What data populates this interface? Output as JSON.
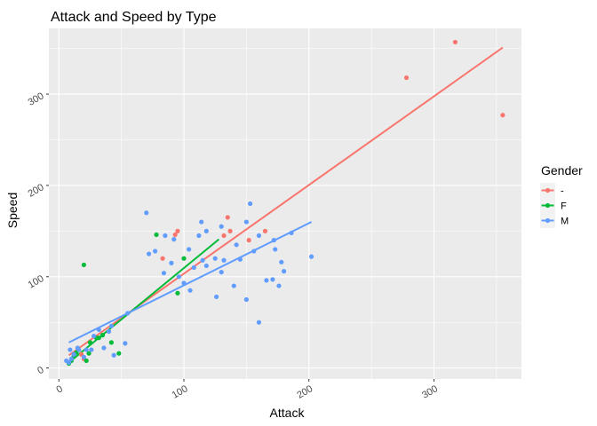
{
  "chart_data": {
    "type": "scatter",
    "title": "Attack and Speed by Type",
    "xlabel": "Attack",
    "ylabel": "Speed",
    "xlim": [
      -8,
      370
    ],
    "ylim": [
      -12,
      372
    ],
    "x_ticks": [
      0,
      100,
      200,
      300
    ],
    "x_tick_labels": [
      "0",
      "100",
      "200",
      "300"
    ],
    "y_ticks": [
      0,
      100,
      200,
      300
    ],
    "y_tick_labels": [
      "0",
      "100",
      "200",
      "300"
    ],
    "grid": true,
    "legend": {
      "title": "Gender",
      "placement": "right"
    },
    "series": [
      {
        "name": "-",
        "color": "#F8766D",
        "points": [
          [
            317,
            357
          ],
          [
            278,
            318
          ],
          [
            355,
            277
          ],
          [
            135,
            165
          ],
          [
            165,
            150
          ],
          [
            137,
            150
          ],
          [
            95,
            150
          ],
          [
            93,
            146
          ],
          [
            83,
            120
          ],
          [
            152,
            140
          ],
          [
            132,
            145
          ],
          [
            20,
            10
          ],
          [
            18,
            15
          ]
        ],
        "fit": [
          [
            8,
            14
          ],
          [
            355,
            351
          ]
        ]
      },
      {
        "name": "F",
        "color": "#00BA38",
        "points": [
          [
            20,
            113
          ],
          [
            78,
            146
          ],
          [
            100,
            120
          ],
          [
            95,
            82
          ],
          [
            48,
            16
          ],
          [
            42,
            28
          ],
          [
            32,
            33
          ],
          [
            30,
            33
          ],
          [
            24,
            16
          ],
          [
            14,
            17
          ],
          [
            10,
            8
          ],
          [
            22,
            8
          ],
          [
            35,
            36
          ],
          [
            25,
            28
          ],
          [
            8,
            5
          ],
          [
            12,
            13
          ]
        ],
        "fit": [
          [
            8,
            6
          ],
          [
            128,
            141
          ]
        ]
      },
      {
        "name": "M",
        "color": "#619CFF",
        "points": [
          [
            70,
            170
          ],
          [
            153,
            180
          ],
          [
            114,
            160
          ],
          [
            118,
            150
          ],
          [
            112,
            145
          ],
          [
            130,
            155
          ],
          [
            142,
            135
          ],
          [
            145,
            119
          ],
          [
            150,
            160
          ],
          [
            156,
            128
          ],
          [
            160,
            145
          ],
          [
            172,
            140
          ],
          [
            173,
            130
          ],
          [
            186,
            148
          ],
          [
            202,
            122
          ],
          [
            178,
            116
          ],
          [
            180,
            106
          ],
          [
            171,
            97
          ],
          [
            166,
            96
          ],
          [
            176,
            90
          ],
          [
            160,
            50
          ],
          [
            150,
            75
          ],
          [
            140,
            90
          ],
          [
            126,
            78
          ],
          [
            130,
            105
          ],
          [
            132,
            118
          ],
          [
            125,
            120
          ],
          [
            118,
            112
          ],
          [
            115,
            118
          ],
          [
            108,
            110
          ],
          [
            104,
            130
          ],
          [
            96,
            100
          ],
          [
            100,
            93
          ],
          [
            90,
            115
          ],
          [
            84,
            104
          ],
          [
            85,
            145
          ],
          [
            72,
            125
          ],
          [
            77,
            128
          ],
          [
            105,
            85
          ],
          [
            92,
            141
          ],
          [
            55,
            60
          ],
          [
            53,
            27
          ],
          [
            40,
            40
          ],
          [
            42,
            46
          ],
          [
            32,
            42
          ],
          [
            28,
            35
          ],
          [
            22,
            20
          ],
          [
            16,
            20
          ],
          [
            12,
            15
          ],
          [
            10,
            10
          ],
          [
            9,
            20
          ],
          [
            8,
            6
          ],
          [
            15,
            22
          ],
          [
            36,
            22
          ],
          [
            44,
            14
          ],
          [
            20,
            12
          ],
          [
            26,
            20
          ],
          [
            6,
            8
          ]
        ],
        "fit": [
          [
            8,
            28
          ],
          [
            202,
            160
          ]
        ]
      }
    ]
  }
}
